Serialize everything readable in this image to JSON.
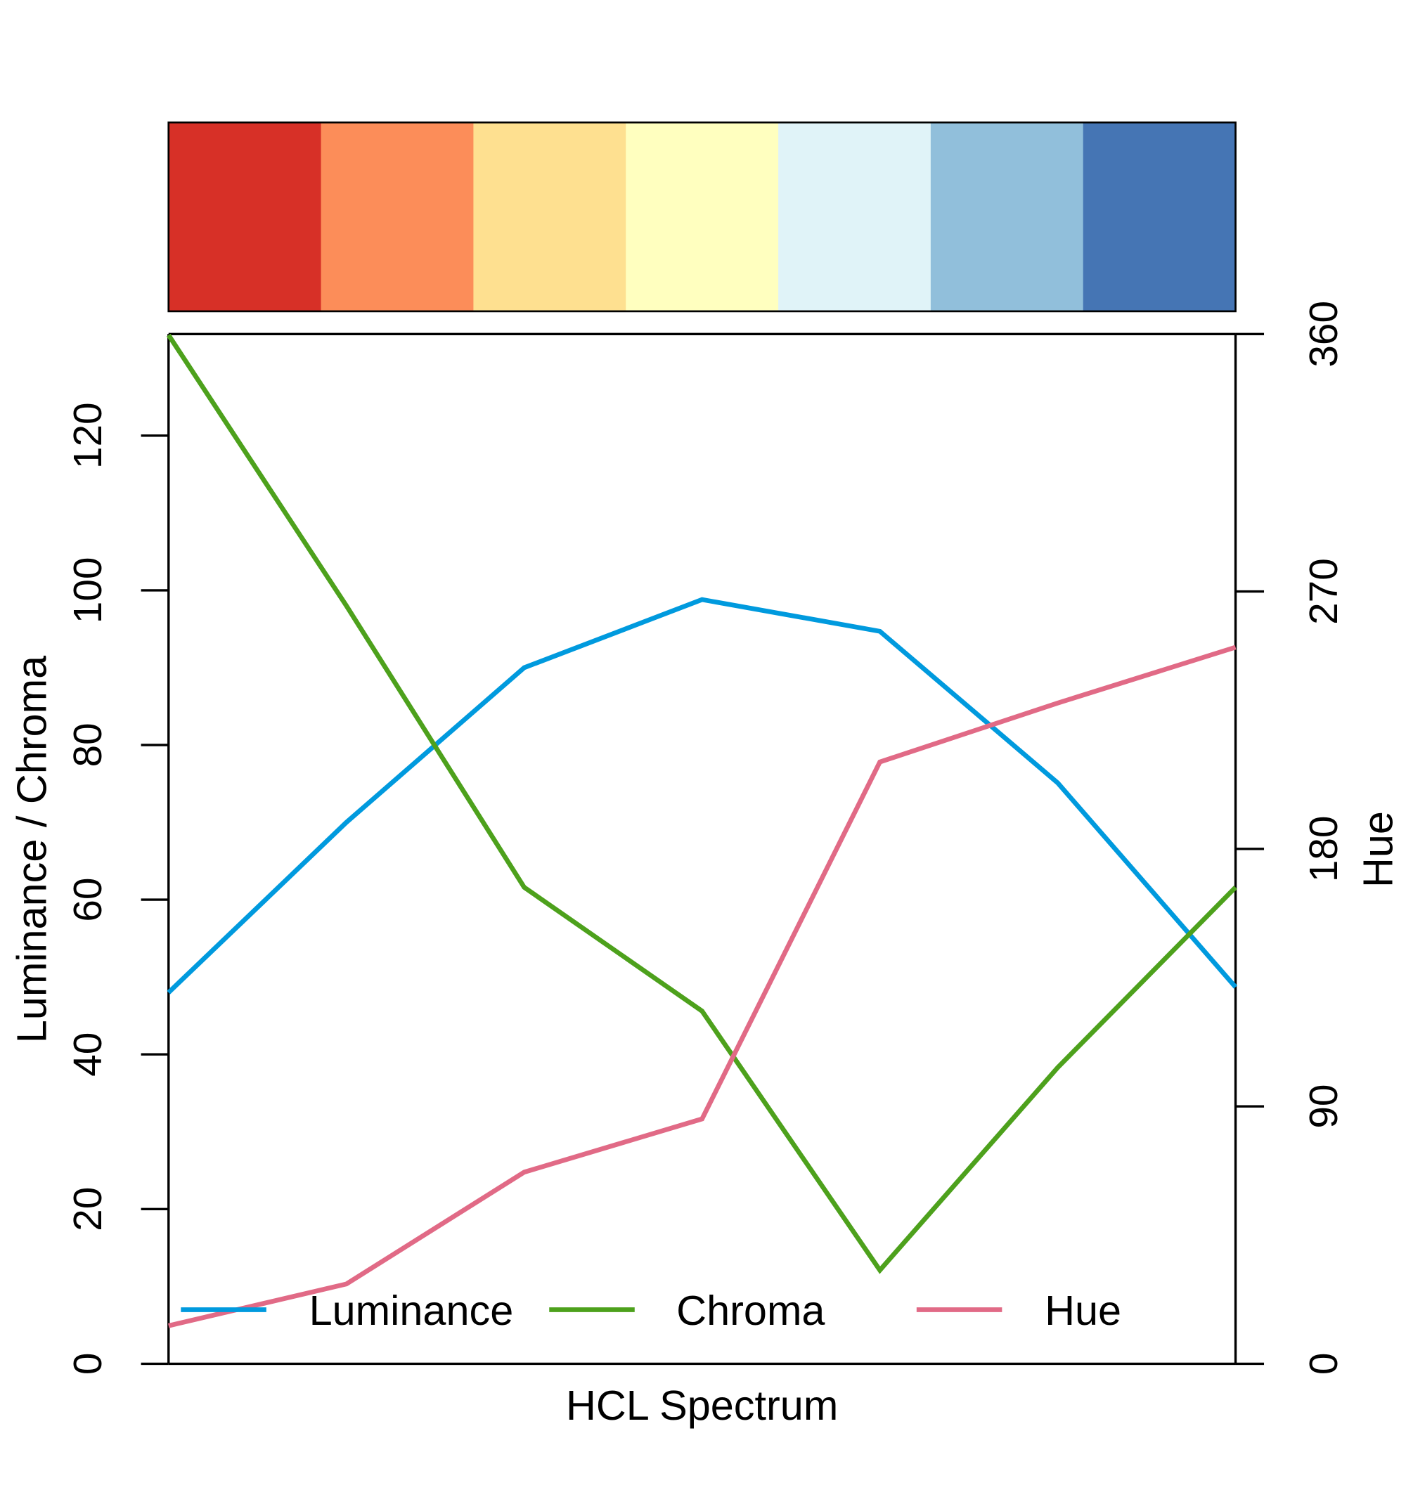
{
  "chart_data": {
    "type": "line",
    "title": "",
    "xlabel": "HCL Spectrum",
    "ylabel": "Luminance / Chroma",
    "y2label": "Hue",
    "x": [
      1,
      2,
      3,
      4,
      5,
      6,
      7
    ],
    "ylim": [
      0,
      133
    ],
    "y2lim": [
      0,
      360
    ],
    "yticks": [
      "0",
      "20",
      "40",
      "60",
      "80",
      "100",
      "120"
    ],
    "y2ticks": [
      "0",
      "90",
      "180",
      "270",
      "360"
    ],
    "palette": [
      "#D73027",
      "#FC8D59",
      "#FEE090",
      "#FFFFBF",
      "#E0F3F8",
      "#91BFDB",
      "#4575B4"
    ],
    "series": [
      {
        "name": "Luminance",
        "axis": "left",
        "color": "#009ADE",
        "values": [
          48,
          70,
          90,
          98.8,
          94.7,
          75.1,
          48.7
        ]
      },
      {
        "name": "Chroma",
        "axis": "left",
        "color": "#4DA11C",
        "values": [
          133,
          98,
          61.6,
          45.6,
          12.1,
          38.3,
          61.6
        ]
      },
      {
        "name": "Hue",
        "axis": "right",
        "color": "#E16A86",
        "values": [
          13.3,
          27.9,
          67,
          85.6,
          210.4,
          231,
          250.5
        ]
      }
    ],
    "legend": {
      "placement": "bottom",
      "entries": [
        "Luminance",
        "Chroma",
        "Hue"
      ]
    },
    "grid": false
  }
}
